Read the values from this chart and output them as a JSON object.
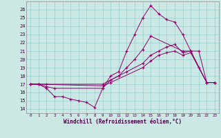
{
  "xlabel": "Windchill (Refroidissement éolien,°C)",
  "bg_color": "#cce8e4",
  "line_color": "#880066",
  "grid_color": "#99cccc",
  "ylim": [
    13.5,
    27.0
  ],
  "xlim": [
    -0.5,
    23.5
  ],
  "yticks": [
    14,
    15,
    16,
    17,
    18,
    19,
    20,
    21,
    22,
    23,
    24,
    25,
    26
  ],
  "xticks": [
    0,
    1,
    2,
    3,
    4,
    5,
    6,
    7,
    8,
    9,
    10,
    11,
    12,
    13,
    14,
    15,
    16,
    17,
    18,
    19,
    20,
    21,
    22,
    23
  ],
  "line1_x": [
    0,
    1,
    2,
    3,
    4,
    5,
    6,
    7,
    8,
    9,
    10,
    11,
    12,
    13,
    14,
    15,
    16,
    17,
    18,
    19,
    20,
    21,
    22,
    23
  ],
  "line1_y": [
    17.0,
    17.0,
    16.5,
    15.5,
    15.5,
    15.2,
    15.0,
    14.8,
    14.2,
    16.5,
    18.0,
    18.5,
    21.0,
    23.0,
    25.0,
    26.5,
    25.5,
    24.8,
    24.5,
    23.0,
    21.0,
    19.0,
    17.2,
    17.2
  ],
  "line2_x": [
    0,
    1,
    2,
    3,
    9,
    10,
    11,
    12,
    13,
    14,
    15,
    19,
    20,
    21,
    22,
    23
  ],
  "line2_y": [
    17.0,
    17.0,
    16.7,
    16.5,
    16.5,
    17.5,
    18.0,
    19.0,
    20.0,
    21.2,
    22.8,
    21.0,
    21.0,
    21.0,
    17.2,
    17.2
  ],
  "line3_x": [
    0,
    1,
    2,
    9,
    10,
    11,
    12,
    14,
    15,
    16,
    17,
    18,
    19,
    20,
    22,
    23
  ],
  "line3_y": [
    17.0,
    17.0,
    17.0,
    17.0,
    17.5,
    18.0,
    18.5,
    19.5,
    20.5,
    21.0,
    21.5,
    21.8,
    20.8,
    21.0,
    17.2,
    17.2
  ],
  "line4_x": [
    0,
    1,
    9,
    10,
    14,
    15,
    16,
    17,
    18,
    19,
    20,
    22,
    23
  ],
  "line4_y": [
    17.0,
    17.0,
    16.8,
    17.2,
    19.0,
    19.8,
    20.5,
    20.8,
    21.0,
    20.5,
    20.8,
    17.2,
    17.2
  ]
}
